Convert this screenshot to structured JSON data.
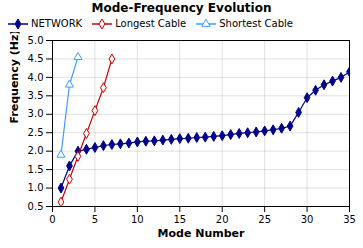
{
  "chart_data": {
    "type": "line",
    "title": "Mode-Frequency Evolution",
    "xlabel": "Mode Number",
    "ylabel": "Frequency (Hz)",
    "xlim": [
      0,
      35
    ],
    "ylim": [
      0.5,
      5.0
    ],
    "xticks": [
      0,
      5,
      10,
      15,
      20,
      25,
      30,
      35
    ],
    "yticks": [
      0.5,
      {
        "value": 1.0,
        "label": "1.0"
      },
      1.5,
      {
        "value": 2.0,
        "label": "2.0"
      },
      2.5,
      {
        "value": 3.0,
        "label": "3.0"
      },
      3.5,
      {
        "value": 4.0,
        "label": "4.0"
      },
      4.5,
      {
        "value": 5.0,
        "label": "5.0"
      }
    ],
    "grid": true,
    "legend": "upper left",
    "series": [
      {
        "name": "NETWORK",
        "color": "#00008B",
        "marker": "filled_diamond",
        "x": [
          1,
          2,
          3,
          4,
          5,
          6,
          7,
          8,
          9,
          10,
          11,
          12,
          13,
          14,
          15,
          16,
          17,
          18,
          19,
          20,
          21,
          22,
          23,
          24,
          25,
          26,
          27,
          28,
          29,
          30,
          31,
          32,
          33,
          34,
          35
        ],
        "values": [
          1.0,
          1.6,
          2.0,
          2.05,
          2.1,
          2.15,
          2.18,
          2.2,
          2.22,
          2.25,
          2.27,
          2.28,
          2.3,
          2.32,
          2.34,
          2.35,
          2.37,
          2.38,
          2.4,
          2.42,
          2.45,
          2.48,
          2.5,
          2.52,
          2.55,
          2.58,
          2.62,
          2.68,
          3.05,
          3.45,
          3.65,
          3.8,
          3.9,
          4.0,
          4.15
        ]
      },
      {
        "name": "Longest Cable",
        "color": "#CC0000",
        "marker": "open_diamond",
        "x": [
          1,
          2,
          3,
          4,
          5,
          6,
          7
        ],
        "values": [
          0.62,
          1.24,
          1.86,
          2.48,
          3.1,
          3.72,
          4.5
        ]
      },
      {
        "name": "Shortest Cable",
        "color": "#4499FF",
        "marker": "open_triangle",
        "x": [
          1,
          2,
          3
        ],
        "values": [
          1.9,
          3.8,
          4.55
        ]
      }
    ]
  }
}
